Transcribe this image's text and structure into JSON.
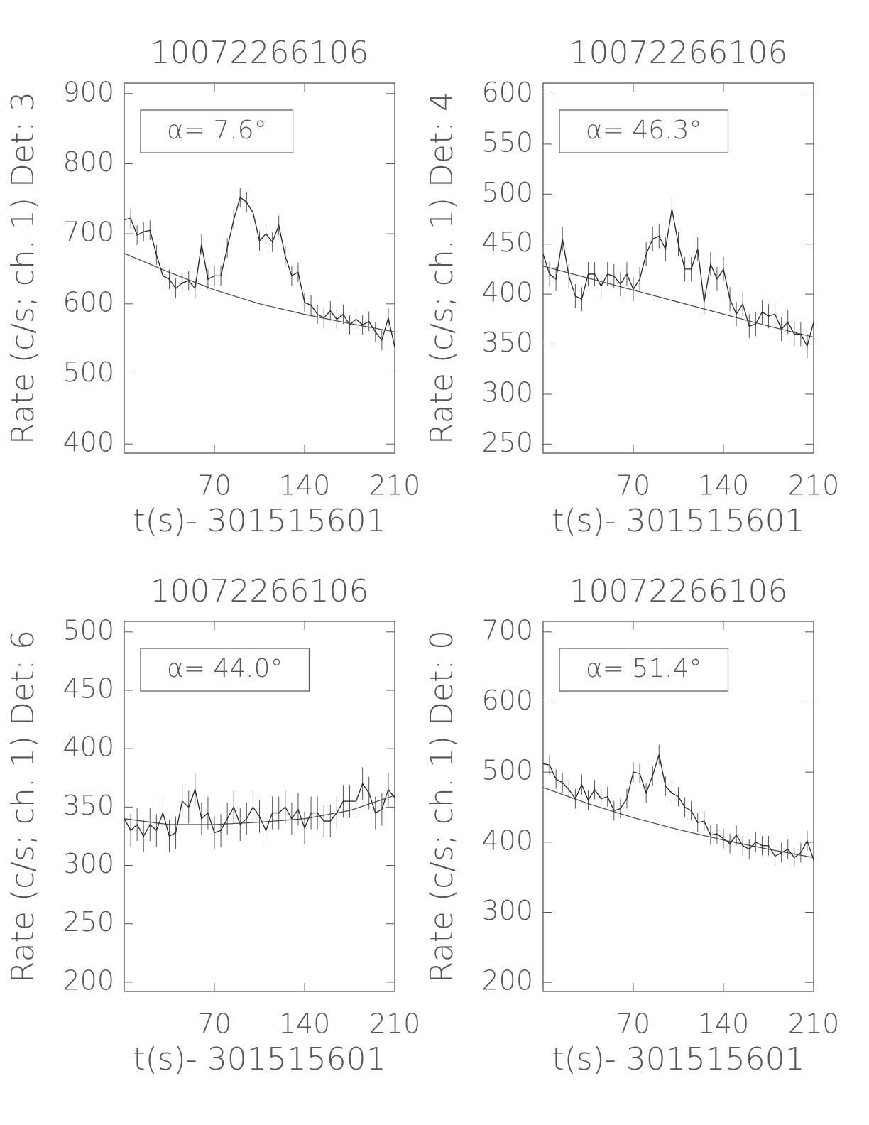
{
  "chart_data": [
    {
      "type": "line",
      "title": "10072266106",
      "ylabel": "Rate (c/s; ch. 1) Det: 3",
      "xlabel": "t(s)- 301515601",
      "annotation": "α= 7.6°",
      "x": [
        0,
        5,
        10,
        15,
        20,
        25,
        30,
        35,
        40,
        45,
        50,
        55,
        60,
        65,
        70,
        75,
        80,
        85,
        90,
        95,
        100,
        105,
        110,
        115,
        120,
        125,
        130,
        135,
        140,
        145,
        150,
        155,
        160,
        165,
        170,
        175,
        180,
        185,
        190,
        195,
        200,
        205,
        210
      ],
      "values": [
        720,
        722,
        698,
        703,
        705,
        670,
        640,
        635,
        622,
        630,
        633,
        622,
        685,
        635,
        640,
        640,
        680,
        720,
        752,
        745,
        730,
        690,
        700,
        688,
        712,
        668,
        640,
        645,
        602,
        598,
        585,
        580,
        590,
        578,
        585,
        570,
        578,
        570,
        575,
        560,
        548,
        580,
        538
      ],
      "error": 14,
      "fit": {
        "x": [
          0,
          35,
          70,
          105,
          140,
          175,
          210
        ],
        "values": [
          672,
          645,
          620,
          600,
          585,
          572,
          560
        ]
      },
      "xlim": [
        0,
        210
      ],
      "xticks": [
        70,
        140,
        210
      ],
      "ylim": [
        387,
        915
      ],
      "yticks": [
        400,
        500,
        600,
        700,
        800,
        900
      ],
      "color": "#222"
    },
    {
      "type": "line",
      "title": "10072266106",
      "ylabel": "Rate (c/s; ch. 1) Det: 4",
      "xlabel": "t(s)- 301515601",
      "annotation": "α= 46.3°",
      "x": [
        0,
        5,
        10,
        15,
        20,
        25,
        30,
        35,
        40,
        45,
        50,
        55,
        60,
        65,
        70,
        75,
        80,
        85,
        90,
        95,
        100,
        105,
        110,
        115,
        120,
        125,
        130,
        135,
        140,
        145,
        150,
        155,
        160,
        165,
        170,
        175,
        180,
        185,
        190,
        195,
        200,
        205,
        210
      ],
      "values": [
        440,
        420,
        415,
        455,
        418,
        398,
        395,
        420,
        420,
        408,
        420,
        418,
        410,
        420,
        405,
        415,
        440,
        455,
        458,
        445,
        485,
        450,
        425,
        425,
        445,
        392,
        430,
        415,
        425,
        395,
        380,
        390,
        368,
        370,
        382,
        378,
        380,
        365,
        372,
        360,
        360,
        348,
        372
      ],
      "error": 12,
      "fit": {
        "x": [
          0,
          35,
          70,
          105,
          140,
          175,
          210
        ],
        "values": [
          428,
          416,
          404,
          392,
          380,
          368,
          357
        ]
      },
      "xlim": [
        0,
        210
      ],
      "xticks": [
        70,
        140,
        210
      ],
      "ylim": [
        241,
        611
      ],
      "yticks": [
        250,
        300,
        350,
        400,
        450,
        500,
        550,
        600
      ],
      "color": "#222"
    },
    {
      "type": "line",
      "title": "10072266106",
      "ylabel": "Rate (c/s; ch. 1) Det: 6",
      "xlabel": "t(s)- 301515601",
      "annotation": "α= 44.0°",
      "x": [
        0,
        5,
        10,
        15,
        20,
        25,
        30,
        35,
        40,
        45,
        50,
        55,
        60,
        65,
        70,
        75,
        80,
        85,
        90,
        95,
        100,
        105,
        110,
        115,
        120,
        125,
        130,
        135,
        140,
        145,
        150,
        155,
        160,
        165,
        170,
        175,
        180,
        185,
        190,
        195,
        200,
        205,
        210
      ],
      "values": [
        340,
        330,
        335,
        325,
        335,
        330,
        345,
        325,
        328,
        355,
        350,
        365,
        340,
        345,
        328,
        330,
        340,
        350,
        335,
        340,
        350,
        342,
        330,
        345,
        345,
        350,
        340,
        348,
        332,
        345,
        345,
        338,
        338,
        345,
        355,
        355,
        355,
        370,
        362,
        345,
        348,
        365,
        358
      ],
      "error": 14,
      "fit": {
        "x": [
          0,
          35,
          70,
          105,
          140,
          175,
          210
        ],
        "values": [
          340,
          335,
          335,
          337,
          340,
          347,
          360
        ]
      },
      "xlim": [
        0,
        210
      ],
      "xticks": [
        70,
        140,
        210
      ],
      "ylim": [
        192,
        509
      ],
      "yticks": [
        200,
        250,
        300,
        350,
        400,
        450,
        500
      ],
      "color": "#222"
    },
    {
      "type": "line",
      "title": "10072266106",
      "ylabel": "Rate (c/s; ch. 1) Det: 0",
      "xlabel": "t(s)- 301515601",
      "annotation": "α= 51.4°",
      "x": [
        0,
        5,
        10,
        15,
        20,
        25,
        30,
        35,
        40,
        45,
        50,
        55,
        60,
        65,
        70,
        75,
        80,
        85,
        90,
        95,
        100,
        105,
        110,
        115,
        120,
        125,
        130,
        135,
        140,
        145,
        150,
        155,
        160,
        165,
        170,
        175,
        180,
        185,
        190,
        195,
        200,
        205,
        210
      ],
      "values": [
        512,
        510,
        490,
        485,
        475,
        462,
        482,
        460,
        475,
        462,
        465,
        445,
        448,
        462,
        500,
        498,
        470,
        495,
        525,
        480,
        470,
        465,
        450,
        445,
        428,
        430,
        410,
        412,
        405,
        398,
        410,
        395,
        390,
        400,
        395,
        395,
        380,
        385,
        390,
        378,
        385,
        402,
        375
      ],
      "error": 14,
      "fit": {
        "x": [
          0,
          35,
          70,
          105,
          140,
          175,
          210
        ],
        "values": [
          478,
          455,
          435,
          418,
          403,
          390,
          378
        ]
      },
      "xlim": [
        0,
        210
      ],
      "xticks": [
        70,
        140,
        210
      ],
      "ylim": [
        187,
        715
      ],
      "yticks": [
        200,
        300,
        400,
        500,
        600,
        700
      ],
      "color": "#222"
    }
  ]
}
